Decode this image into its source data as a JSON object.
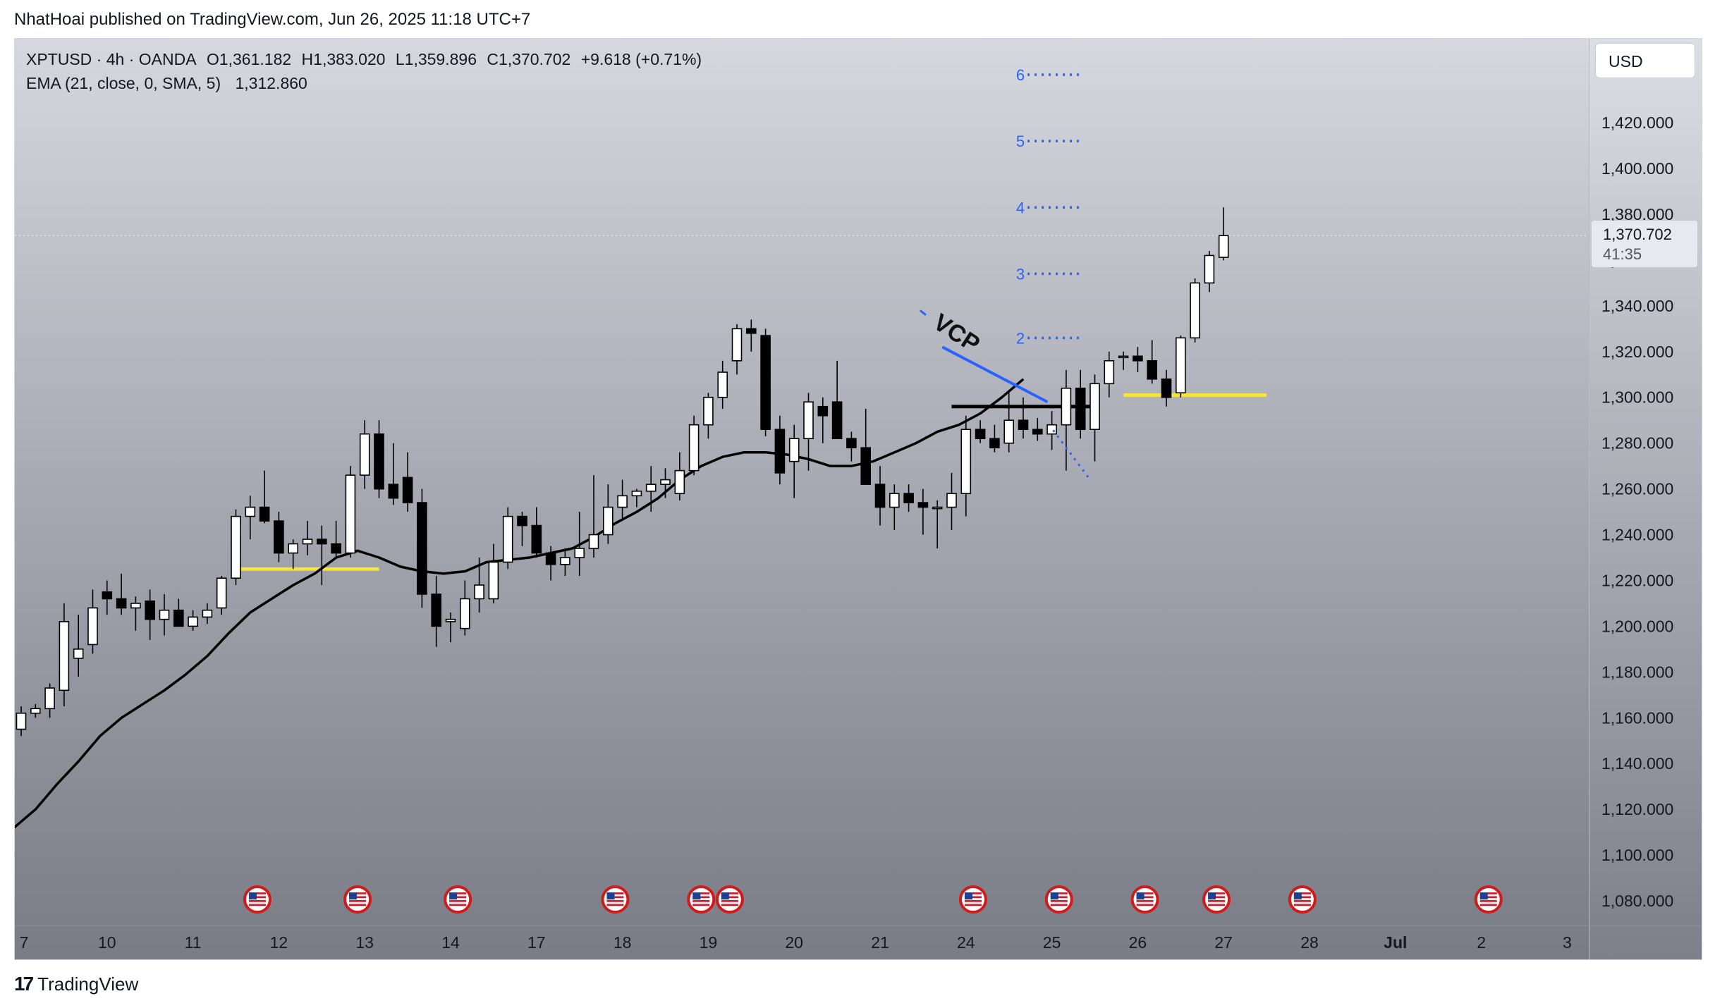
{
  "publisher_line": "NhatHoai published on TradingView.com, Jun 26, 2025 11:18 UTC+7",
  "footer": {
    "logo_text": "TradingView",
    "logo_mark": "17"
  },
  "legend": {
    "symbol": "XPTUSD · 4h · OANDA",
    "open": "O1,361.182",
    "high": "H1,383.020",
    "low": "L1,359.896",
    "close": "C1,370.702",
    "change": "+9.618 (+0.71%)",
    "ema_label": "EMA (21, close, 0, SMA, 5)",
    "ema_value": "1,312.860"
  },
  "price_scale": {
    "currency": "USD",
    "last_price": "1,370.702",
    "countdown": "41:35"
  },
  "annotations": {
    "vcp_label": "VCP",
    "fib_levels": [
      "2",
      "3",
      "4",
      "5",
      "6"
    ],
    "line_color_yellow": "#f5e33b",
    "line_color_blue": "#2962ff"
  },
  "chart_data": {
    "type": "candlestick",
    "title": "",
    "xlabel": "",
    "ylabel": "",
    "ylim": [
      1070,
      1432
    ],
    "y_ticks": [
      "1,080.000",
      "1,100.000",
      "1,120.000",
      "1,140.000",
      "1,160.000",
      "1,180.000",
      "1,200.000",
      "1,220.000",
      "1,240.000",
      "1,260.000",
      "1,280.000",
      "1,300.000",
      "1,320.000",
      "1,340.000",
      "1,360.000",
      "1,380.000",
      "1,400.000",
      "1,420.000"
    ],
    "x_ticks": [
      {
        "label": "7",
        "bar": 0
      },
      {
        "label": "10",
        "bar": 6
      },
      {
        "label": "11",
        "bar": 12
      },
      {
        "label": "12",
        "bar": 18
      },
      {
        "label": "13",
        "bar": 24
      },
      {
        "label": "14",
        "bar": 30
      },
      {
        "label": "17",
        "bar": 36
      },
      {
        "label": "18",
        "bar": 42
      },
      {
        "label": "19",
        "bar": 48
      },
      {
        "label": "20",
        "bar": 54
      },
      {
        "label": "21",
        "bar": 60
      },
      {
        "label": "24",
        "bar": 66
      },
      {
        "label": "25",
        "bar": 72
      },
      {
        "label": "26",
        "bar": 78
      },
      {
        "label": "27",
        "bar": 84
      },
      {
        "label": "28",
        "bar": 90
      },
      {
        "label": "Jul",
        "bar": 96
      },
      {
        "label": "2",
        "bar": 102
      },
      {
        "label": "3",
        "bar": 108
      }
    ],
    "candles": [
      [
        1155,
        1165,
        1152,
        1162
      ],
      [
        1162,
        1166,
        1160,
        1164
      ],
      [
        1164,
        1175,
        1160,
        1173
      ],
      [
        1172,
        1210,
        1165,
        1202
      ],
      [
        1186,
        1205,
        1178,
        1190
      ],
      [
        1192,
        1216,
        1188,
        1208
      ],
      [
        1215,
        1220,
        1205,
        1212
      ],
      [
        1212,
        1223,
        1205,
        1208
      ],
      [
        1208,
        1213,
        1198,
        1210
      ],
      [
        1211,
        1216,
        1194,
        1203
      ],
      [
        1203,
        1214,
        1196,
        1207
      ],
      [
        1207,
        1212,
        1200,
        1200
      ],
      [
        1200,
        1207,
        1198,
        1204
      ],
      [
        1204,
        1210,
        1201,
        1207
      ],
      [
        1208,
        1222,
        1205,
        1221
      ],
      [
        1221,
        1251,
        1218,
        1248
      ],
      [
        1248,
        1257,
        1238,
        1252
      ],
      [
        1252,
        1268,
        1245,
        1246
      ],
      [
        1246,
        1250,
        1228,
        1232
      ],
      [
        1232,
        1238,
        1225,
        1236
      ],
      [
        1236,
        1246,
        1231,
        1238
      ],
      [
        1238,
        1244,
        1218,
        1236
      ],
      [
        1236,
        1246,
        1230,
        1232
      ],
      [
        1232,
        1270,
        1230,
        1266
      ],
      [
        1266,
        1290,
        1260,
        1284
      ],
      [
        1284,
        1290,
        1256,
        1260
      ],
      [
        1262,
        1280,
        1253,
        1256
      ],
      [
        1265,
        1276,
        1250,
        1254
      ],
      [
        1254,
        1260,
        1208,
        1214
      ],
      [
        1214,
        1222,
        1191,
        1200
      ],
      [
        1202,
        1206,
        1193,
        1203
      ],
      [
        1199,
        1220,
        1196,
        1212
      ],
      [
        1212,
        1230,
        1206,
        1218
      ],
      [
        1212,
        1236,
        1210,
        1228
      ],
      [
        1228,
        1252,
        1225,
        1248
      ],
      [
        1248,
        1250,
        1235,
        1244
      ],
      [
        1244,
        1252,
        1230,
        1232
      ],
      [
        1232,
        1235,
        1220,
        1227
      ],
      [
        1227,
        1234,
        1222,
        1230
      ],
      [
        1230,
        1250,
        1222,
        1234
      ],
      [
        1234,
        1266,
        1230,
        1240
      ],
      [
        1240,
        1262,
        1236,
        1252
      ],
      [
        1252,
        1264,
        1246,
        1257
      ],
      [
        1257,
        1260,
        1252,
        1259
      ],
      [
        1259,
        1270,
        1250,
        1262
      ],
      [
        1262,
        1269,
        1256,
        1264
      ],
      [
        1258,
        1276,
        1255,
        1268
      ],
      [
        1268,
        1292,
        1266,
        1288
      ],
      [
        1288,
        1302,
        1282,
        1300
      ],
      [
        1300,
        1316,
        1295,
        1311
      ],
      [
        1316,
        1332,
        1310,
        1330
      ],
      [
        1330,
        1334,
        1320,
        1328
      ],
      [
        1327,
        1330,
        1283,
        1286
      ],
      [
        1286,
        1292,
        1262,
        1267
      ],
      [
        1272,
        1288,
        1256,
        1282
      ],
      [
        1282,
        1302,
        1268,
        1298
      ],
      [
        1296,
        1300,
        1280,
        1292
      ],
      [
        1298,
        1316,
        1282,
        1282
      ],
      [
        1282,
        1285,
        1272,
        1278
      ],
      [
        1278,
        1295,
        1262,
        1262
      ],
      [
        1262,
        1270,
        1244,
        1252
      ],
      [
        1252,
        1262,
        1242,
        1258
      ],
      [
        1258,
        1262,
        1250,
        1254
      ],
      [
        1254,
        1260,
        1240,
        1252
      ],
      [
        1252,
        1255,
        1234,
        1252
      ],
      [
        1252,
        1267,
        1242,
        1258
      ],
      [
        1258,
        1292,
        1248,
        1286
      ],
      [
        1286,
        1290,
        1280,
        1282
      ],
      [
        1282,
        1288,
        1276,
        1278
      ],
      [
        1280,
        1302,
        1276,
        1290
      ],
      [
        1290,
        1300,
        1282,
        1286
      ],
      [
        1286,
        1291,
        1281,
        1284
      ],
      [
        1284,
        1294,
        1277,
        1288
      ],
      [
        1288,
        1312,
        1268,
        1304
      ],
      [
        1304,
        1312,
        1282,
        1286
      ],
      [
        1286,
        1310,
        1272,
        1306
      ],
      [
        1306,
        1320,
        1300,
        1316
      ],
      [
        1318,
        1320,
        1312,
        1318
      ],
      [
        1318,
        1322,
        1311,
        1316
      ],
      [
        1316,
        1325,
        1306,
        1308
      ],
      [
        1308,
        1312,
        1296,
        1300
      ],
      [
        1302,
        1327,
        1300,
        1326
      ],
      [
        1326,
        1352,
        1324,
        1350
      ],
      [
        1350,
        1364,
        1346,
        1362
      ],
      [
        1361.182,
        1383.02,
        1359.896,
        1370.702
      ]
    ],
    "ema_21": [
      [
        0,
        1112
      ],
      [
        3,
        1120
      ],
      [
        6,
        1131
      ],
      [
        9,
        1141
      ],
      [
        12,
        1152
      ],
      [
        15,
        1160
      ],
      [
        18,
        1166
      ],
      [
        21,
        1172
      ],
      [
        24,
        1179
      ],
      [
        27,
        1187
      ],
      [
        30,
        1197
      ],
      [
        33,
        1206
      ],
      [
        36,
        1212
      ],
      [
        39,
        1218
      ],
      [
        42,
        1223
      ],
      [
        45,
        1230
      ],
      [
        48,
        1233
      ],
      [
        51,
        1230
      ],
      [
        54,
        1226
      ],
      [
        57,
        1224
      ],
      [
        60,
        1223
      ],
      [
        63,
        1224
      ],
      [
        66,
        1228
      ],
      [
        69,
        1229
      ],
      [
        72,
        1230
      ],
      [
        75,
        1232
      ],
      [
        78,
        1234
      ],
      [
        81,
        1239
      ],
      [
        84,
        1245
      ],
      [
        87,
        1250
      ],
      [
        90,
        1256
      ],
      [
        93,
        1264
      ],
      [
        96,
        1270
      ],
      [
        99,
        1274
      ],
      [
        102,
        1276
      ],
      [
        105,
        1276
      ],
      [
        108,
        1275
      ],
      [
        111,
        1273
      ],
      [
        114,
        1270
      ],
      [
        117,
        1270
      ],
      [
        120,
        1272
      ],
      [
        123,
        1276
      ],
      [
        126,
        1280
      ],
      [
        129,
        1285
      ],
      [
        132,
        1288
      ],
      [
        135,
        1293
      ],
      [
        138,
        1300
      ],
      [
        141,
        1308
      ]
    ],
    "hlines": [
      {
        "price": 1225,
        "from_bar": 15,
        "to_bar": 25,
        "color": "yellow"
      },
      {
        "price": 1301,
        "from_bar": 77,
        "to_bar": 87,
        "color": "yellow"
      },
      {
        "price": 1296,
        "from_bar": 65,
        "to_bar": 75,
        "color": "black"
      }
    ],
    "event_flags_at_bars": [
      16.5,
      23.5,
      30.5,
      41.5,
      47.5,
      49.5,
      66.5,
      72.5,
      78.5,
      83.5,
      89.5,
      102.5
    ]
  }
}
